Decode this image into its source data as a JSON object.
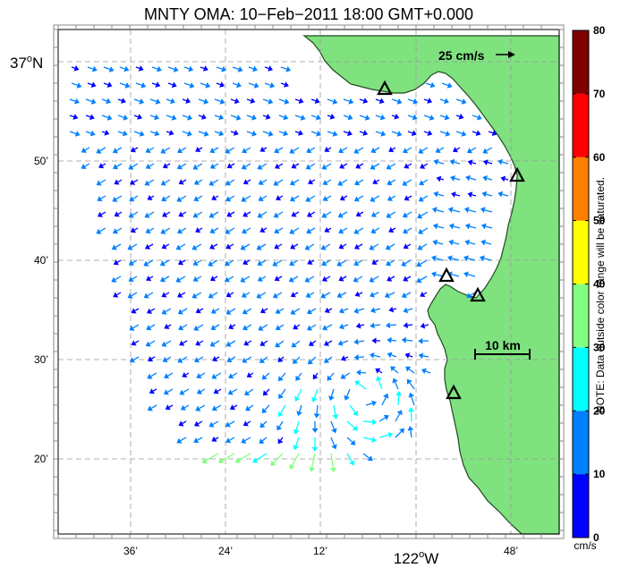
{
  "title": "MNTY OMA: 10−Feb−2011 18:00 GMT+0.000",
  "axes": {
    "lat_top": {
      "deg": "37",
      "sup": "o",
      "hemi": "N"
    },
    "lat_ticks": [
      "50’",
      "40’",
      "30’",
      "20’"
    ],
    "lon_ticks": [
      "36’",
      "24’",
      "12’",
      "48’"
    ],
    "lon_main": {
      "deg": "122",
      "sup": "o",
      "hemi": "W"
    }
  },
  "scale_vector_label": "25 cm/s",
  "scale_bar_label": "10 km",
  "colorbar": {
    "ticks": [
      "80",
      "70",
      "60",
      "50",
      "40",
      "30",
      "20",
      "10",
      "0"
    ],
    "unit": "cm/s",
    "note": "NOTE: Data outside color range will be saturated.",
    "colors": [
      "#0000ff",
      "#0080ff",
      "#00ffff",
      "#80ff80",
      "#ffff00",
      "#ff8000",
      "#ff0000",
      "#800000"
    ],
    "min": 0,
    "max": 80
  },
  "colors": {
    "land": "#7fe27f",
    "coast": "#1e4a1e",
    "grid": "#999999"
  },
  "sites": [
    {
      "name": "site-1"
    },
    {
      "name": "site-2"
    },
    {
      "name": "site-3"
    },
    {
      "name": "site-4"
    },
    {
      "name": "site-5"
    }
  ]
}
